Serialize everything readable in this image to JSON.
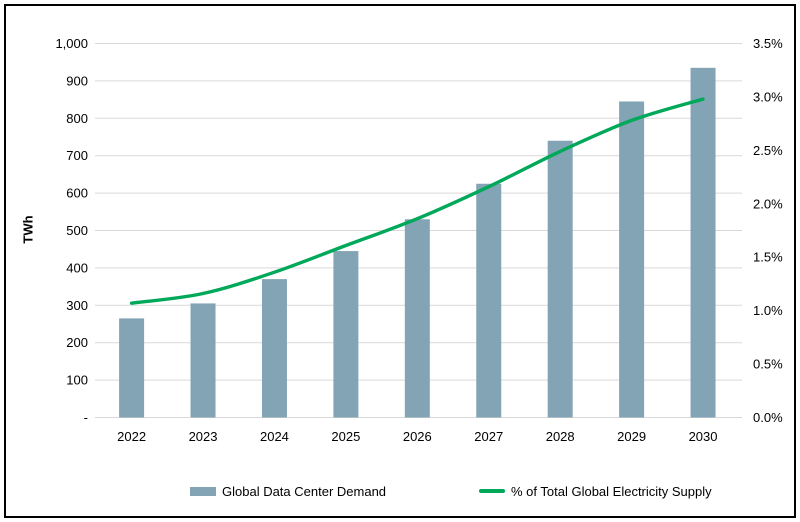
{
  "chart_data": {
    "type": "bar",
    "combo_types": [
      "bar",
      "line"
    ],
    "categories": [
      "2022",
      "2023",
      "2024",
      "2025",
      "2026",
      "2027",
      "2028",
      "2029",
      "2030"
    ],
    "series": [
      {
        "name": "Global Data Center Demand",
        "type": "bar",
        "axis": "left",
        "unit": "TWh",
        "color": "#82A4B4",
        "values": [
          265,
          305,
          370,
          445,
          530,
          625,
          740,
          845,
          935
        ]
      },
      {
        "name": "% of Total Global Electricity Supply",
        "type": "line",
        "axis": "right",
        "unit": "%",
        "color": "#00A859",
        "values": [
          1.07,
          1.16,
          1.36,
          1.61,
          1.86,
          2.16,
          2.49,
          2.78,
          2.98
        ]
      }
    ],
    "left_axis": {
      "title": "TWh",
      "min": 0,
      "max": 1000,
      "step": 100,
      "tick_labels": [
        "-",
        "100",
        "200",
        "300",
        "400",
        "500",
        "600",
        "700",
        "800",
        "900",
        "1,000"
      ]
    },
    "right_axis": {
      "min": 0,
      "max": 3.5,
      "step": 0.5,
      "tick_labels": [
        "0.0%",
        "0.5%",
        "1.0%",
        "1.5%",
        "2.0%",
        "2.5%",
        "3.0%",
        "3.5%"
      ]
    },
    "grid": true,
    "legend_position": "bottom"
  },
  "colors": {
    "bar": "#82A4B4",
    "line": "#00A859",
    "grid": "#D9D9D9",
    "text": "#000000",
    "frame_border": "#000000",
    "background": "#FFFFFF"
  }
}
